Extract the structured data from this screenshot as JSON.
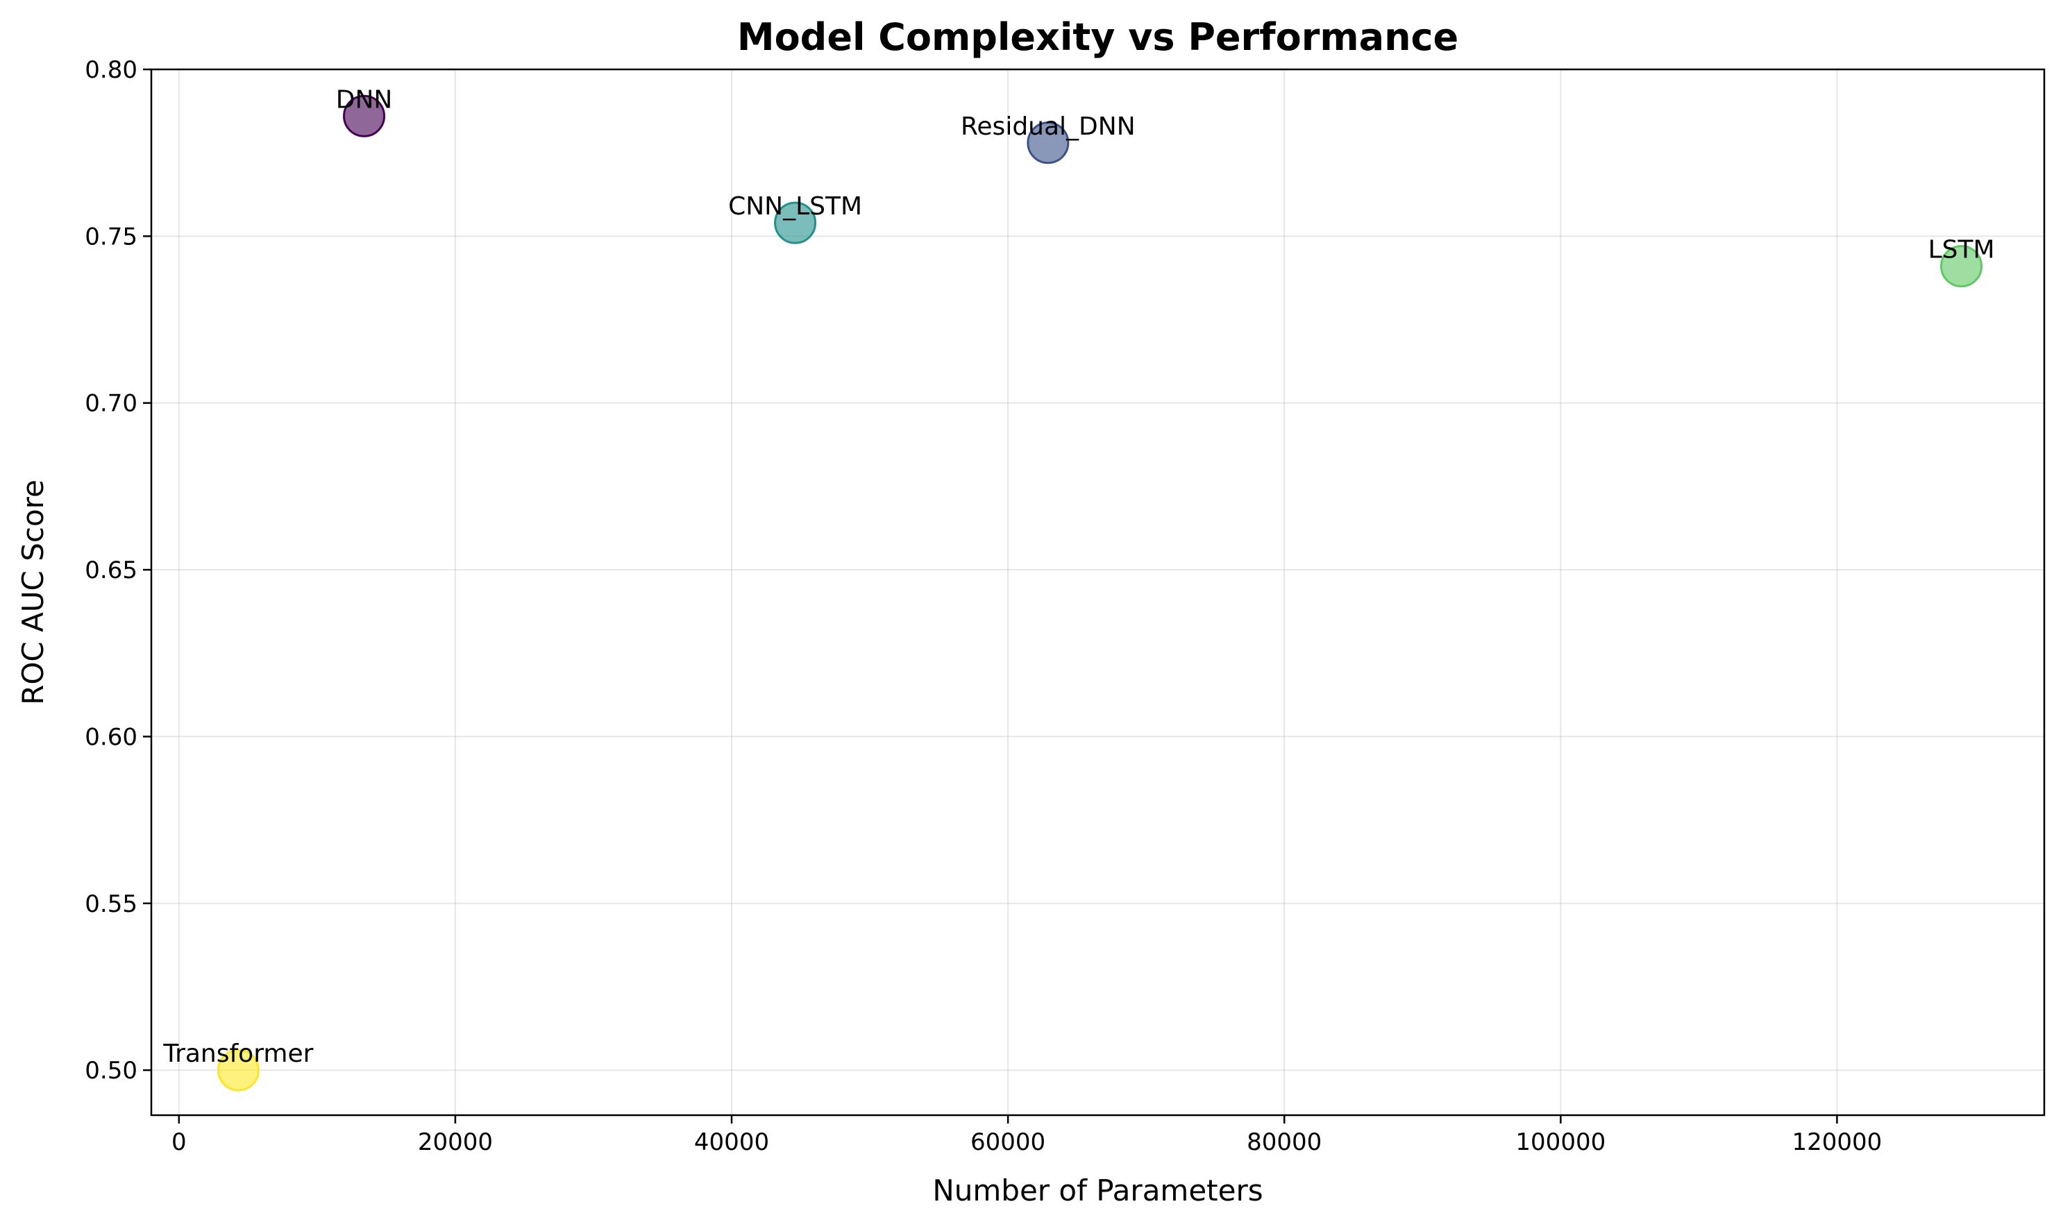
{
  "chart_data": {
    "type": "scatter",
    "title": "Model Complexity vs Performance",
    "xlabel": "Number of Parameters",
    "ylabel": "ROC AUC Score",
    "xlim": [
      -2000,
      135000
    ],
    "ylim": [
      0.4865,
      0.8
    ],
    "xticks": [
      0,
      20000,
      40000,
      60000,
      80000,
      100000,
      120000
    ],
    "yticks": [
      0.5,
      0.55,
      0.6,
      0.65,
      0.7,
      0.75,
      0.8
    ],
    "xtick_labels": [
      "0",
      "20000",
      "40000",
      "60000",
      "80000",
      "100000",
      "120000"
    ],
    "ytick_labels": [
      "0.50",
      "0.55",
      "0.60",
      "0.65",
      "0.70",
      "0.75",
      "0.80"
    ],
    "grid": true,
    "points": [
      {
        "label": "DNN",
        "x": 13400,
        "y": 0.786,
        "color": "#440154"
      },
      {
        "label": "Residual_DNN",
        "x": 62900,
        "y": 0.778,
        "color": "#3b528b"
      },
      {
        "label": "CNN_LSTM",
        "x": 44600,
        "y": 0.754,
        "color": "#21918c"
      },
      {
        "label": "LSTM",
        "x": 129000,
        "y": 0.741,
        "color": "#5ec962"
      },
      {
        "label": "Transformer",
        "x": 4300,
        "y": 0.5,
        "color": "#fde725"
      }
    ]
  }
}
